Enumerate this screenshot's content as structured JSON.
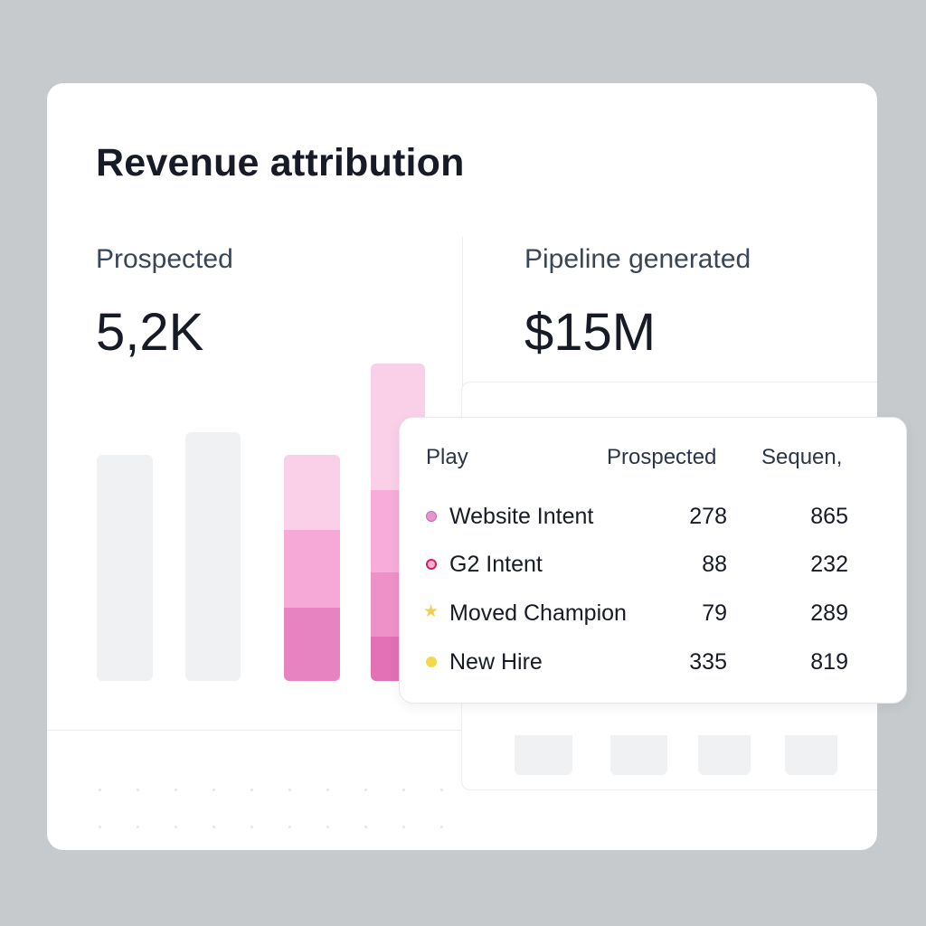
{
  "card": {
    "title": "Revenue attribution"
  },
  "left": {
    "label": "Prospected",
    "value": "5,2K"
  },
  "right": {
    "label": "Pipeline generated",
    "value": "$15M"
  },
  "colors": {
    "pink_light": "#fad0e9",
    "pink_mid": "#f6a9d7",
    "pink_dark": "#e883c1",
    "yellow": "#f5d84a"
  },
  "table": {
    "headers": [
      "Play",
      "Prospected",
      "Sequen,"
    ],
    "rows": [
      {
        "marker": "filled-dot-pink",
        "play": "Website Intent",
        "prospected": "278",
        "sequenced": "865"
      },
      {
        "marker": "ring-dot-red",
        "play": "G2 Intent",
        "prospected": "88",
        "sequenced": "232"
      },
      {
        "marker": "star-yellow",
        "play": "Moved Champion",
        "prospected": "79",
        "sequenced": "289"
      },
      {
        "marker": "filled-dot-yellow",
        "play": "New Hire",
        "prospected": "335",
        "sequenced": "819"
      }
    ]
  }
}
